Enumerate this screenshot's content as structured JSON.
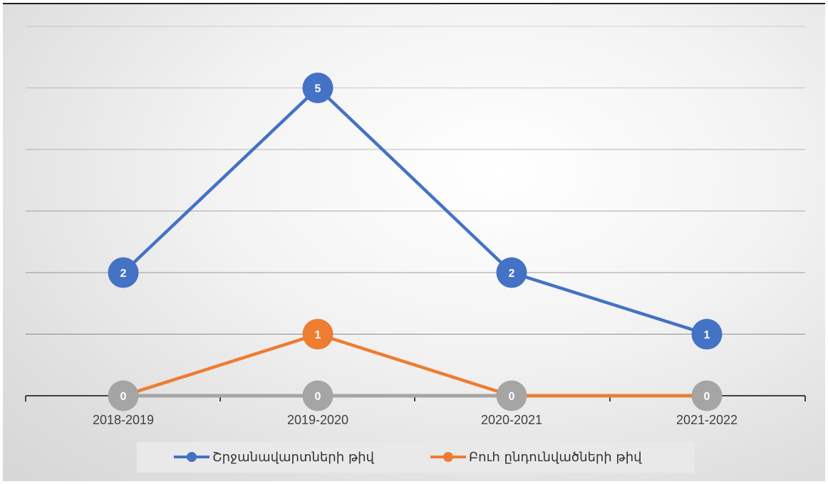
{
  "chart_data": {
    "type": "line",
    "categories": [
      "2018-2019",
      "2019-2020",
      "2020-2021",
      "2021-2022"
    ],
    "series": [
      {
        "name": "Շրջանավարտների թիվ",
        "values": [
          2,
          5,
          2,
          1
        ],
        "color": "#4472c4"
      },
      {
        "name": "Բուհ ընդունվածների թիվ",
        "values": [
          0,
          1,
          0,
          0
        ],
        "color": "#ed7d31"
      },
      {
        "name": "",
        "values": [
          0,
          0,
          0,
          0
        ],
        "color": "#a5a5a5"
      }
    ],
    "ylim": [
      0,
      6
    ],
    "grid": true,
    "legend_position": "bottom"
  }
}
